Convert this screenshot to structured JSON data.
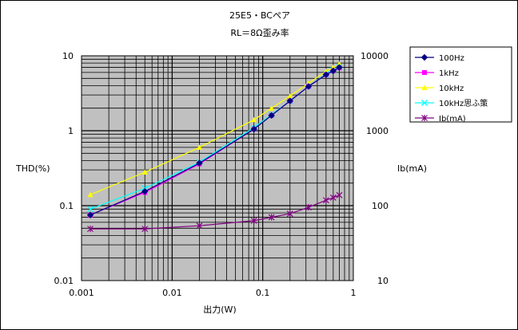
{
  "chart_data": {
    "type": "line",
    "title": "25E5・BCペア",
    "subtitle": "RL＝8Ω歪み率",
    "xlabel": "出力(W)",
    "ylabel": "THD(%)",
    "y2label": "Ib(mA)",
    "xscale": "log",
    "yscale": "log",
    "y2scale": "log",
    "xlim": [
      0.001,
      1
    ],
    "ylim": [
      0.01,
      10
    ],
    "y2lim": [
      10,
      10000
    ],
    "grid": true,
    "legend_position": "right",
    "xticks": [
      "0.001",
      "0.01",
      "0.1",
      "1"
    ],
    "yticks": [
      "10",
      "1",
      "0.1",
      "0.01"
    ],
    "y2ticks": [
      "10000",
      "1000",
      "100",
      "10"
    ],
    "plot_background": "#c0c0c0",
    "series": [
      {
        "name": "100Hz",
        "axis": "left",
        "color": "#000080",
        "marker": "diamond",
        "x": [
          0.00125,
          0.005,
          0.02,
          0.08,
          0.125,
          0.2,
          0.32,
          0.5,
          0.6,
          0.7
        ],
        "y": [
          0.075,
          0.155,
          0.37,
          1.05,
          1.6,
          2.5,
          3.9,
          5.6,
          6.3,
          7.0
        ]
      },
      {
        "name": "1kHz",
        "axis": "left",
        "color": "#ff00ff",
        "marker": "square",
        "x": [
          0.00125,
          0.005,
          0.02,
          0.08,
          0.125,
          0.2,
          0.32,
          0.5,
          0.6,
          0.7
        ],
        "y": [
          0.075,
          0.15,
          0.36,
          1.05,
          1.6,
          2.5,
          3.9,
          5.6,
          6.3,
          6.9
        ]
      },
      {
        "name": "10kHz",
        "axis": "left",
        "color": "#ffff00",
        "marker": "triangle",
        "x": [
          0.00125,
          0.005,
          0.02,
          0.08,
          0.125,
          0.2,
          0.32,
          0.5,
          0.6,
          0.7
        ],
        "y": [
          0.14,
          0.28,
          0.6,
          1.4,
          2.0,
          2.9,
          4.3,
          6.2,
          7.0,
          7.8
        ]
      },
      {
        "name": "10kHz思ふ策",
        "axis": "left",
        "color": "#00ffff",
        "marker": "x",
        "x": [
          0.00125,
          0.005,
          0.02,
          0.08,
          0.125,
          0.2,
          0.32,
          0.5,
          0.6,
          0.7
        ],
        "y": [
          0.09,
          0.17,
          0.38,
          1.1,
          1.65,
          2.5,
          3.9,
          5.7,
          6.4,
          7.1
        ]
      },
      {
        "name": "Ib(mA)",
        "axis": "right",
        "color": "#800080",
        "marker": "star",
        "x": [
          0.00125,
          0.005,
          0.02,
          0.08,
          0.125,
          0.2,
          0.32,
          0.5,
          0.6,
          0.7
        ],
        "y": [
          49,
          49,
          54,
          63,
          70,
          78,
          95,
          118,
          128,
          138
        ]
      }
    ]
  }
}
